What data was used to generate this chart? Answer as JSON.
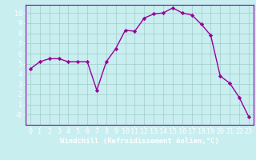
{
  "x": [
    0,
    1,
    2,
    3,
    4,
    5,
    6,
    7,
    8,
    9,
    10,
    11,
    12,
    13,
    14,
    15,
    16,
    17,
    18,
    19,
    20,
    21,
    22,
    23
  ],
  "y": [
    4.5,
    5.2,
    5.5,
    5.5,
    5.2,
    5.2,
    5.2,
    2.4,
    5.2,
    6.5,
    8.3,
    8.2,
    9.5,
    9.9,
    10.0,
    10.5,
    10.0,
    9.8,
    8.9,
    7.8,
    3.8,
    3.1,
    1.7,
    -0.2
  ],
  "line_color": "#990099",
  "marker": "D",
  "marker_size": 2.2,
  "bg_color": "#c8eef0",
  "grid_color": "#a0ccc8",
  "xlabel": "Windchill (Refroidissement éolien,°C)",
  "xlim": [
    -0.5,
    23.5
  ],
  "ylim": [
    -1.0,
    10.8
  ],
  "yticks": [
    0,
    1,
    2,
    3,
    4,
    5,
    6,
    7,
    8,
    9,
    10
  ],
  "ytick_labels": [
    "-0",
    "1",
    "2",
    "3",
    "4",
    "5",
    "6",
    "7",
    "8",
    "9",
    "10"
  ],
  "xticks": [
    0,
    1,
    2,
    3,
    4,
    5,
    6,
    7,
    8,
    9,
    10,
    11,
    12,
    13,
    14,
    15,
    16,
    17,
    18,
    19,
    20,
    21,
    22,
    23
  ],
  "xlabel_fontsize": 6.5,
  "tick_fontsize": 6.0,
  "line_width": 1.0,
  "text_color": "white",
  "spine_color": "#8800aa"
}
